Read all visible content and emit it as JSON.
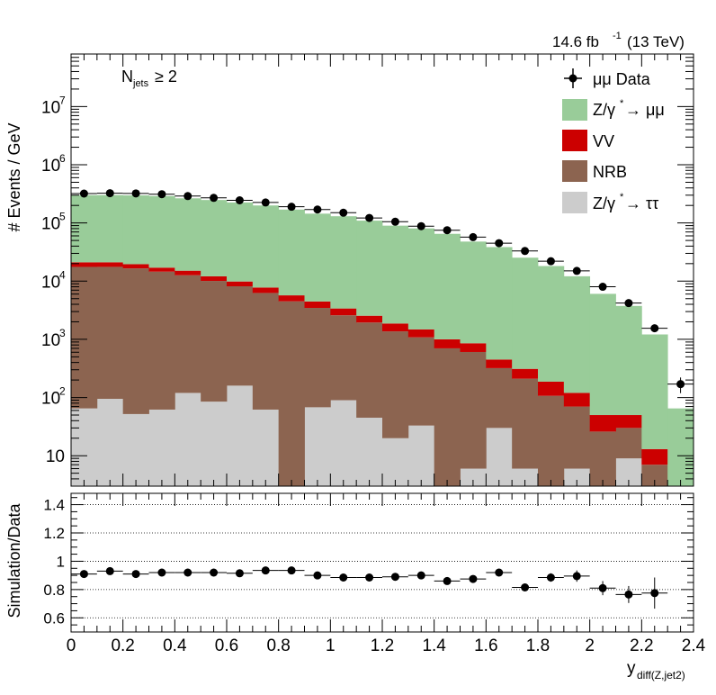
{
  "chart_data": [
    {
      "type": "bar",
      "panel": "main",
      "stacked": true,
      "ylabel": "# Events / GeV",
      "yscale": "log",
      "ylim": [
        3,
        80000000
      ],
      "xlim": [
        0,
        2.4
      ],
      "bin_width": 0.1,
      "bins_lo": [
        0.0,
        0.1,
        0.2,
        0.3,
        0.4,
        0.5,
        0.6,
        0.7,
        0.8,
        0.9,
        1.0,
        1.1,
        1.2,
        1.3,
        1.4,
        1.5,
        1.6,
        1.7,
        1.8,
        1.9,
        2.0,
        2.1,
        2.2,
        2.3
      ],
      "luminosity": "14.6 fb",
      "lumi_exp": "-1",
      "energy": "(13 TeV)",
      "annotation": {
        "main": "N",
        "sub": "jets",
        "rest": " ≥ 2"
      },
      "y_ticks": [
        {
          "value": 10,
          "label": "10"
        },
        {
          "value": 100,
          "label": "10",
          "exp": "2"
        },
        {
          "value": 1000,
          "label": "10",
          "exp": "3"
        },
        {
          "value": 10000,
          "label": "10",
          "exp": "4"
        },
        {
          "value": 100000,
          "label": "10",
          "exp": "5"
        },
        {
          "value": 1000000,
          "label": "10",
          "exp": "6"
        },
        {
          "value": 10000000,
          "label": "10",
          "exp": "7"
        }
      ],
      "legend": {
        "position": "top-right",
        "entries": [
          {
            "key": "data",
            "label": "μμ Data",
            "kind": "marker",
            "color": "#000000"
          },
          {
            "key": "dy_mumu",
            "label": "Z/γ",
            "label_sup": "*",
            "label_tail": " → μμ",
            "kind": "box",
            "color": "#99cc99"
          },
          {
            "key": "vv",
            "label": "VV",
            "kind": "box",
            "color": "#cc0000"
          },
          {
            "key": "nrb",
            "label": "NRB",
            "kind": "box",
            "color": "#8c6450"
          },
          {
            "key": "dy_tautau",
            "label": "Z/γ",
            "label_sup": "*",
            "label_tail": " → ττ",
            "kind": "box",
            "color": "#cccccc"
          }
        ]
      },
      "series": [
        {
          "name": "Z/γ* → ττ",
          "key": "dy_tautau",
          "color": "#cccccc",
          "values": [
            65,
            95,
            52,
            62,
            120,
            85,
            160,
            62,
            0,
            68,
            90,
            45,
            20,
            33,
            0,
            6,
            30,
            6,
            0,
            6,
            0,
            9,
            0,
            0
          ]
        },
        {
          "name": "NRB",
          "key": "nrb",
          "color": "#8c6450",
          "values": [
            17500,
            17500,
            16500,
            14500,
            12500,
            10000,
            8000,
            6200,
            4500,
            3400,
            2500,
            1900,
            1350,
            1050,
            700,
            600,
            290,
            205,
            107,
            64,
            26,
            21,
            7,
            0
          ]
        },
        {
          "name": "VV",
          "key": "vv",
          "color": "#cc0000",
          "values": [
            3500,
            3500,
            3000,
            2500,
            2500,
            2000,
            1700,
            1500,
            1200,
            1000,
            800,
            600,
            500,
            400,
            300,
            250,
            130,
            100,
            80,
            50,
            24,
            20,
            6,
            0
          ]
        },
        {
          "name": "Z/γ* → μμ",
          "key": "dy_mumu",
          "color": "#99cc99",
          "values": [
            279000,
            280000,
            278000,
            273000,
            250000,
            236000,
            215000,
            192000,
            164000,
            140000,
            127000,
            107000,
            88000,
            79000,
            64000,
            47000,
            38000,
            25000,
            18000,
            12000,
            6000,
            3700,
            1200,
            65
          ]
        }
      ],
      "data_points": {
        "name": "μμ Data",
        "values": [
          320000,
          325000,
          322000,
          312000,
          290000,
          270000,
          245000,
          225000,
          190000,
          170000,
          150000,
          122000,
          105000,
          88000,
          75000,
          57000,
          45000,
          33000,
          22000,
          15000,
          8000,
          4200,
          1550,
          170
        ],
        "errors_rel": [
          0.02,
          0.02,
          0.02,
          0.02,
          0.02,
          0.02,
          0.02,
          0.02,
          0.02,
          0.02,
          0.02,
          0.02,
          0.02,
          0.02,
          0.02,
          0.02,
          0.02,
          0.03,
          0.03,
          0.04,
          0.05,
          0.07,
          0.12,
          0.3
        ]
      }
    },
    {
      "type": "scatter",
      "panel": "ratio",
      "ylabel": "Simulation/Data",
      "xlabel": "y",
      "xlabel_sub": "diff(Z,jet2)",
      "ylim": [
        0.5,
        1.48
      ],
      "xlim": [
        0,
        2.4
      ],
      "y_ticks": [
        0.6,
        0.8,
        1,
        1.2,
        1.4
      ],
      "y_tick_labels": [
        "0.6",
        "0.8",
        "1",
        "1.2",
        "1.4"
      ],
      "x_ticks": [
        0,
        0.2,
        0.4,
        0.6,
        0.8,
        1,
        1.2,
        1.4,
        1.6,
        1.8,
        2,
        2.2,
        2.4
      ],
      "x_tick_labels": [
        "0",
        "0.2",
        "0.4",
        "0.6",
        "0.8",
        "1",
        "1.2",
        "1.4",
        "1.6",
        "1.8",
        "2",
        "2.2",
        "2.4"
      ],
      "gridlines": [
        0.6,
        0.8,
        1.0,
        1.2,
        1.4
      ],
      "x": [
        0.05,
        0.15,
        0.25,
        0.35,
        0.45,
        0.55,
        0.65,
        0.75,
        0.85,
        0.95,
        1.05,
        1.15,
        1.25,
        1.35,
        1.45,
        1.55,
        1.65,
        1.75,
        1.85,
        1.95,
        2.05,
        2.15,
        2.25
      ],
      "values": [
        0.91,
        0.93,
        0.91,
        0.92,
        0.92,
        0.92,
        0.915,
        0.935,
        0.935,
        0.9,
        0.885,
        0.885,
        0.89,
        0.9,
        0.86,
        0.875,
        0.92,
        0.815,
        0.885,
        0.895,
        0.81,
        0.765,
        0.775
      ],
      "errors": [
        0.01,
        0.01,
        0.01,
        0.01,
        0.01,
        0.01,
        0.01,
        0.01,
        0.01,
        0.01,
        0.01,
        0.01,
        0.01,
        0.01,
        0.012,
        0.015,
        0.015,
        0.02,
        0.03,
        0.04,
        0.05,
        0.06,
        0.11
      ]
    }
  ]
}
